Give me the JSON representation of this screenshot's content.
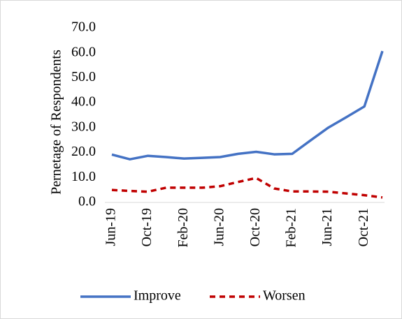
{
  "chart_data": {
    "type": "line",
    "y_label": "Pernetage of Respondents",
    "categories": [
      "Jun-19",
      null,
      "Oct-19",
      null,
      "Feb-20",
      null,
      "Jun-20",
      null,
      "Oct-20",
      null,
      "Feb-21",
      null,
      "Jun-21",
      null,
      "Oct-21",
      null
    ],
    "series": [
      {
        "name": "Improve",
        "color": "#4472c4",
        "dash": false,
        "values": [
          19.2,
          17.3,
          18.7,
          18.2,
          17.6,
          17.9,
          18.2,
          19.5,
          20.3,
          19.3,
          19.5,
          24.8,
          30.0,
          34.2,
          38.5,
          60.7
        ]
      },
      {
        "name": "Worsen",
        "color": "#c00000",
        "dash": true,
        "values": [
          5.0,
          4.6,
          4.3,
          5.9,
          5.9,
          5.9,
          6.5,
          8.2,
          9.8,
          5.6,
          4.4,
          4.4,
          4.3,
          3.6,
          2.9,
          2.0
        ]
      }
    ],
    "ylim": [
      0,
      70
    ],
    "yticks": [
      {
        "value": 0,
        "label": "0.0"
      },
      {
        "value": 10,
        "label": "10.0"
      },
      {
        "value": 20,
        "label": "20.0"
      },
      {
        "value": 30,
        "label": "30.0"
      },
      {
        "value": 40,
        "label": "40.0"
      },
      {
        "value": 50,
        "label": "50.0"
      },
      {
        "value": 60,
        "label": "60.0"
      },
      {
        "value": 70,
        "label": "70.0"
      }
    ],
    "grid": false,
    "legend": "bottom"
  }
}
